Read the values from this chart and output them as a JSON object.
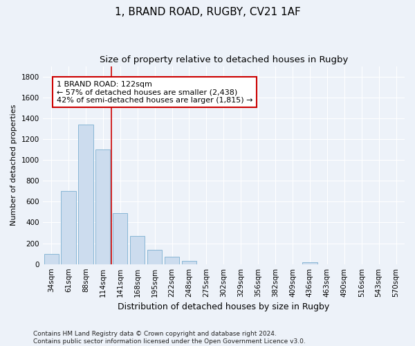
{
  "title": "1, BRAND ROAD, RUGBY, CV21 1AF",
  "subtitle": "Size of property relative to detached houses in Rugby",
  "xlabel": "Distribution of detached houses by size in Rugby",
  "ylabel": "Number of detached properties",
  "categories": [
    "34sqm",
    "61sqm",
    "88sqm",
    "114sqm",
    "141sqm",
    "168sqm",
    "195sqm",
    "222sqm",
    "248sqm",
    "275sqm",
    "302sqm",
    "329sqm",
    "356sqm",
    "382sqm",
    "409sqm",
    "436sqm",
    "463sqm",
    "490sqm",
    "516sqm",
    "543sqm",
    "570sqm"
  ],
  "values": [
    100,
    700,
    1340,
    1100,
    490,
    270,
    140,
    70,
    30,
    0,
    0,
    0,
    0,
    0,
    0,
    20,
    0,
    0,
    0,
    0,
    0
  ],
  "bar_color": "#ccdcee",
  "bar_edge_color": "#7aaed0",
  "vline_x": 3.5,
  "vline_color": "#cc0000",
  "annotation_text": "1 BRAND ROAD: 122sqm\n← 57% of detached houses are smaller (2,438)\n42% of semi-detached houses are larger (1,815) →",
  "annotation_box_color": "#ffffff",
  "annotation_box_edge": "#cc0000",
  "ylim": [
    0,
    1900
  ],
  "yticks": [
    0,
    200,
    400,
    600,
    800,
    1000,
    1200,
    1400,
    1600,
    1800
  ],
  "background_color": "#edf2f9",
  "grid_color": "#ffffff",
  "footer": "Contains HM Land Registry data © Crown copyright and database right 2024.\nContains public sector information licensed under the Open Government Licence v3.0.",
  "title_fontsize": 11,
  "subtitle_fontsize": 9.5,
  "xlabel_fontsize": 9,
  "ylabel_fontsize": 8,
  "tick_fontsize": 7.5,
  "footer_fontsize": 6.5,
  "annotation_fontsize": 8
}
